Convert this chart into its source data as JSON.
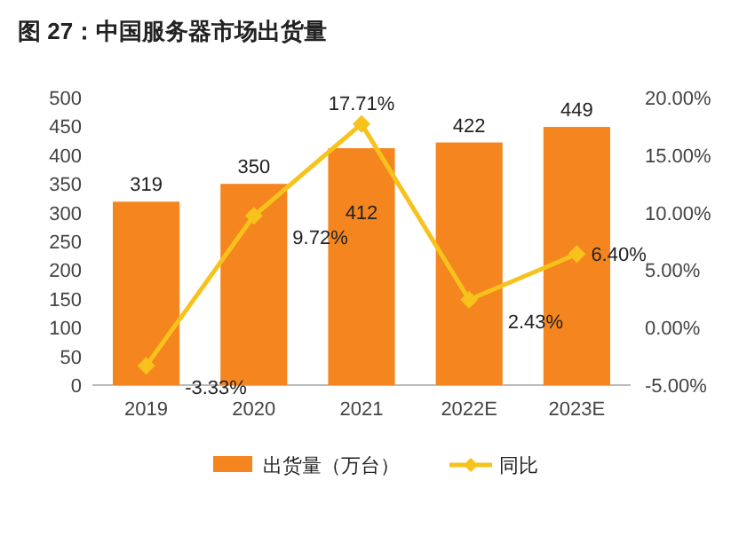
{
  "chart_data": {
    "type": "bar",
    "title": "图 27：中国服务器市场出货量",
    "categories": [
      "2019",
      "2020",
      "2021",
      "2022E",
      "2023E"
    ],
    "series": [
      {
        "name": "出货量（万台）",
        "color": "#f5861f",
        "values": [
          319,
          350,
          412,
          422,
          449
        ]
      },
      {
        "type": "line",
        "name": "同比",
        "color": "#f7c21b",
        "axis": "y2",
        "marker": "diamond",
        "values": [
          -3.33,
          9.72,
          17.71,
          2.43,
          6.4
        ],
        "value_labels": [
          "-3.33%",
          "9.72%",
          "17.71%",
          "2.43%",
          "6.40%"
        ]
      }
    ],
    "ylim": [
      0,
      500
    ],
    "yticks": [
      0,
      50,
      100,
      150,
      200,
      250,
      300,
      350,
      400,
      450,
      500
    ],
    "y2lim": [
      -5,
      20
    ],
    "y2ticks": [
      {
        "value": -5,
        "label": "-5.00%"
      },
      {
        "value": 0,
        "label": "0.00%"
      },
      {
        "value": 5,
        "label": "5.00%"
      },
      {
        "value": 10,
        "label": "10.00%"
      },
      {
        "value": 15,
        "label": "15.00%"
      },
      {
        "value": 20,
        "label": "20.00%"
      }
    ],
    "data_labels": true,
    "legend": "bottom",
    "grid": false
  }
}
